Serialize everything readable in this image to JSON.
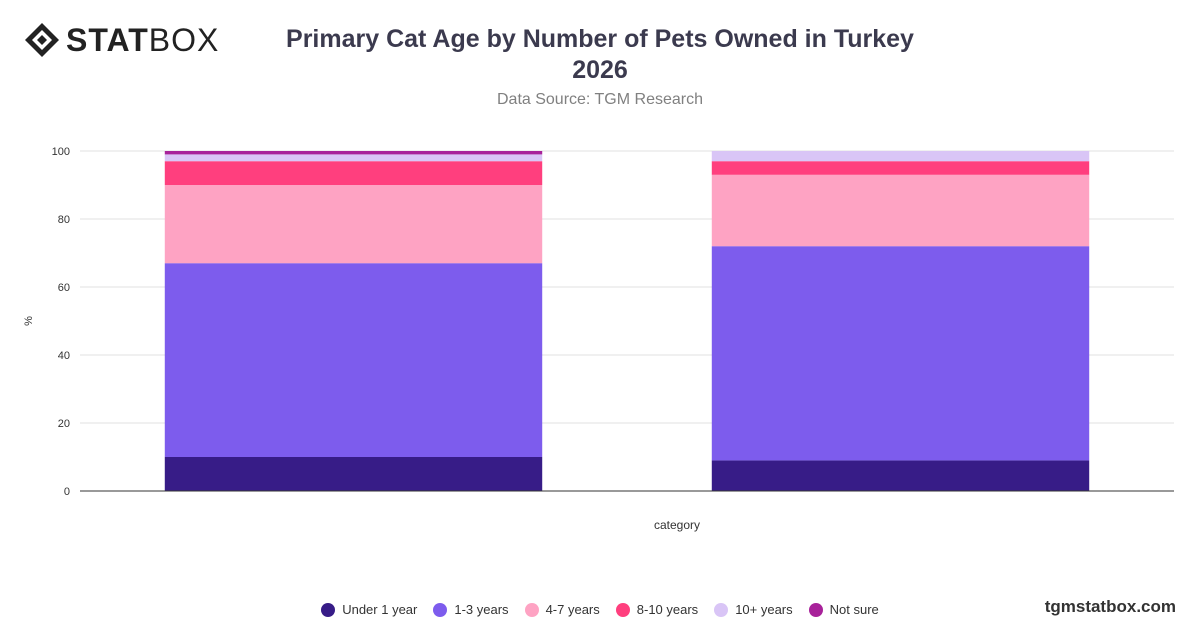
{
  "header": {
    "logo_bold": "STAT",
    "logo_light": "BOX",
    "title_line1": "Primary Cat Age by Number of Pets Owned in Turkey",
    "title_line2": "2026",
    "subtitle": "Data Source: TGM Research"
  },
  "watermark": "tgmstatbox.com",
  "colors": {
    "grid": "#e0e0e0",
    "axis": "#333333",
    "logo": "#222222"
  },
  "chart_data": {
    "type": "bar",
    "stacked": true,
    "title": "Primary Cat Age by Number of Pets Owned in Turkey 2026",
    "xlabel": "category",
    "ylabel": "%",
    "ylim": [
      0,
      100
    ],
    "yticks": [
      0,
      20,
      40,
      60,
      80,
      100
    ],
    "grid": true,
    "legend_position": "bottom",
    "categories": [
      "",
      ""
    ],
    "series": [
      {
        "name": "Under 1 year",
        "color": "#371c87",
        "values": [
          10,
          9
        ]
      },
      {
        "name": "1-3 years",
        "color": "#7d5ced",
        "values": [
          57,
          63
        ]
      },
      {
        "name": "4-7 years",
        "color": "#fea3c3",
        "values": [
          23,
          21
        ]
      },
      {
        "name": "8-10 years",
        "color": "#ff3f7e",
        "values": [
          7,
          4
        ]
      },
      {
        "name": "10+ years",
        "color": "#d9c5f6",
        "values": [
          2,
          3
        ]
      },
      {
        "name": "Not sure",
        "color": "#a8229a",
        "values": [
          1,
          0
        ]
      }
    ]
  }
}
